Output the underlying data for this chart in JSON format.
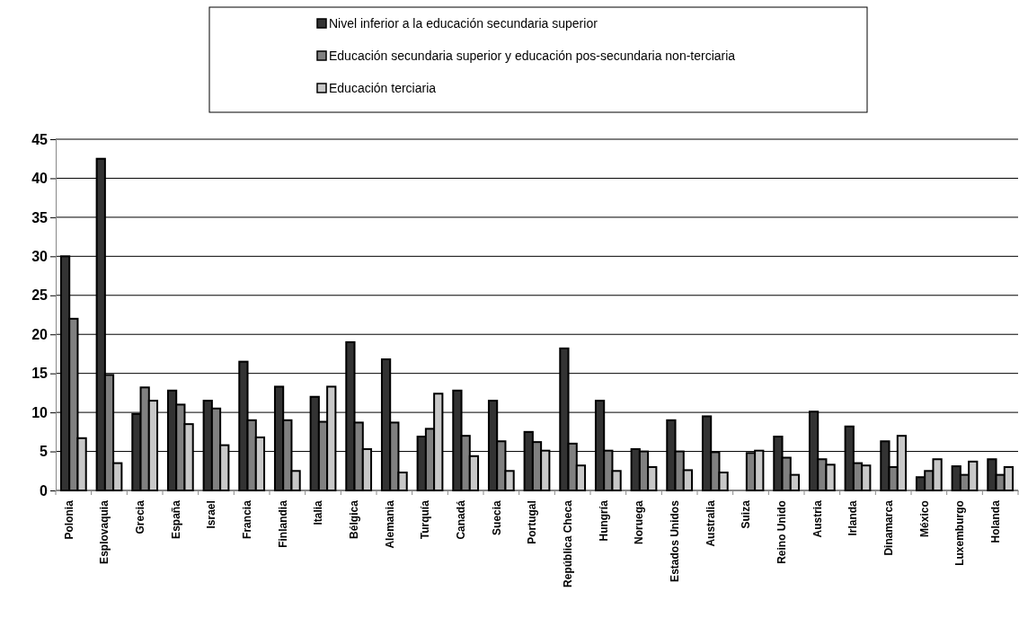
{
  "chart_data": {
    "type": "bar",
    "categories": [
      "Polonia",
      "Esplovaquia",
      "Grecia",
      "España",
      "Israel",
      "Francia",
      "Finlandia",
      "Italia",
      "Bélgica",
      "Alemania",
      "Turquía",
      "Canadá",
      "Suecia",
      "Portugal",
      "República Checa",
      "Hungría",
      "Noruega",
      "Estados Unidos",
      "Australia",
      "Suiza",
      "Reino Unido",
      "Austria",
      "Irlanda",
      "Dinamarca",
      "México",
      "Luxemburgo",
      "Holanda"
    ],
    "series": [
      {
        "name": "Nivel inferior a la educación secundaria superior",
        "color": "#333333",
        "values": [
          30,
          42.5,
          9.8,
          12.8,
          11.5,
          16.5,
          13.3,
          12,
          19,
          16.8,
          6.9,
          12.8,
          11.5,
          7.5,
          18.2,
          11.5,
          5.3,
          9,
          9.5,
          null,
          6.9,
          10.1,
          8.2,
          6.3,
          1.7,
          3.1,
          4
        ]
      },
      {
        "name": "Educación secundaria superior y educación pos-secundaria non-terciaria",
        "color": "#808080",
        "values": [
          22,
          14.8,
          13.2,
          11,
          10.5,
          9,
          9,
          8.8,
          8.7,
          8.7,
          7.9,
          7,
          6.3,
          6.2,
          6,
          5.1,
          5,
          5,
          4.9,
          4.8,
          4.2,
          4,
          3.5,
          3,
          2.5,
          2,
          2
        ]
      },
      {
        "name": "Educación terciaria",
        "color": "#c8c8c8",
        "values": [
          6.7,
          3.5,
          11.5,
          8.5,
          5.8,
          6.8,
          2.5,
          13.3,
          5.3,
          2.3,
          12.4,
          4.4,
          2.5,
          5.1,
          3.2,
          2.5,
          3,
          2.6,
          2.3,
          5.1,
          2,
          3.3,
          3.2,
          7,
          4,
          3.7,
          3
        ]
      }
    ],
    "ylim": [
      0,
      45
    ],
    "yticks": [
      0,
      5,
      10,
      15,
      20,
      25,
      30,
      35,
      40,
      45
    ],
    "grid": "y",
    "legend": "top"
  }
}
